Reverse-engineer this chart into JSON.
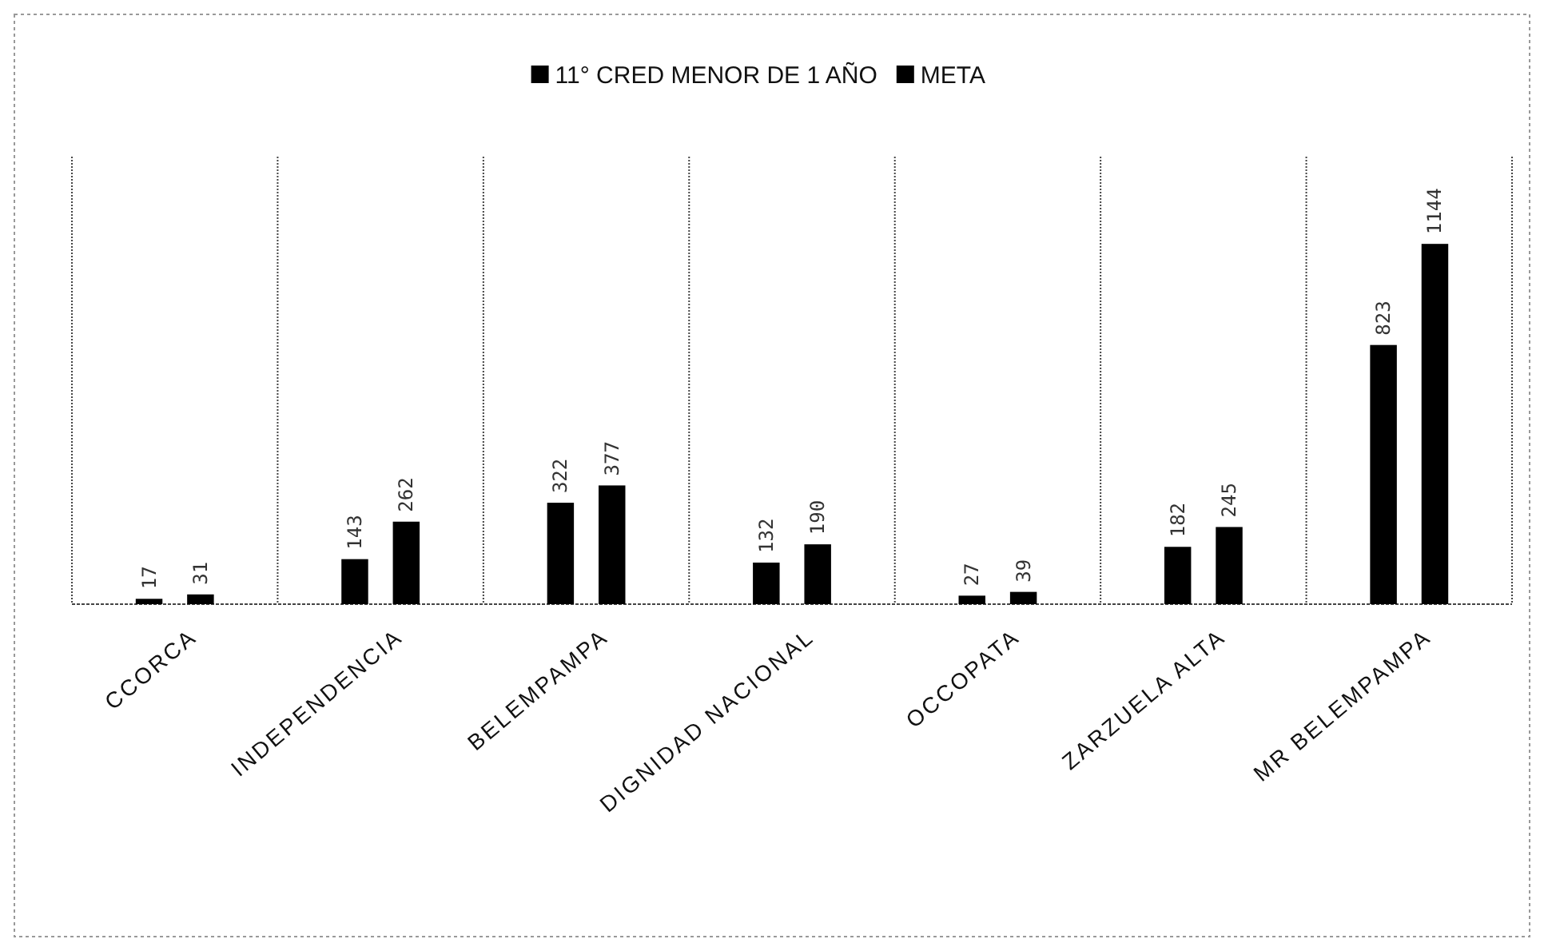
{
  "chart_data": {
    "type": "bar",
    "categories": [
      "CCORCA",
      "INDEPENDENCIA",
      "BELEMPAMPA",
      "DIGNIDAD NACIONAL",
      "OCCOPATA",
      "ZARZUELA ALTA",
      "MR BELEMPAMPA"
    ],
    "series": [
      {
        "name": "11° CRED MENOR DE 1 AÑO",
        "color": "#000000",
        "values": [
          17,
          143,
          322,
          132,
          27,
          182,
          823
        ]
      },
      {
        "name": "META",
        "color": "#000000",
        "values": [
          31,
          262,
          377,
          190,
          39,
          245,
          1144
        ]
      }
    ],
    "tick_labels": "x",
    "data_labels": true,
    "grid": "x",
    "legend": "top"
  }
}
